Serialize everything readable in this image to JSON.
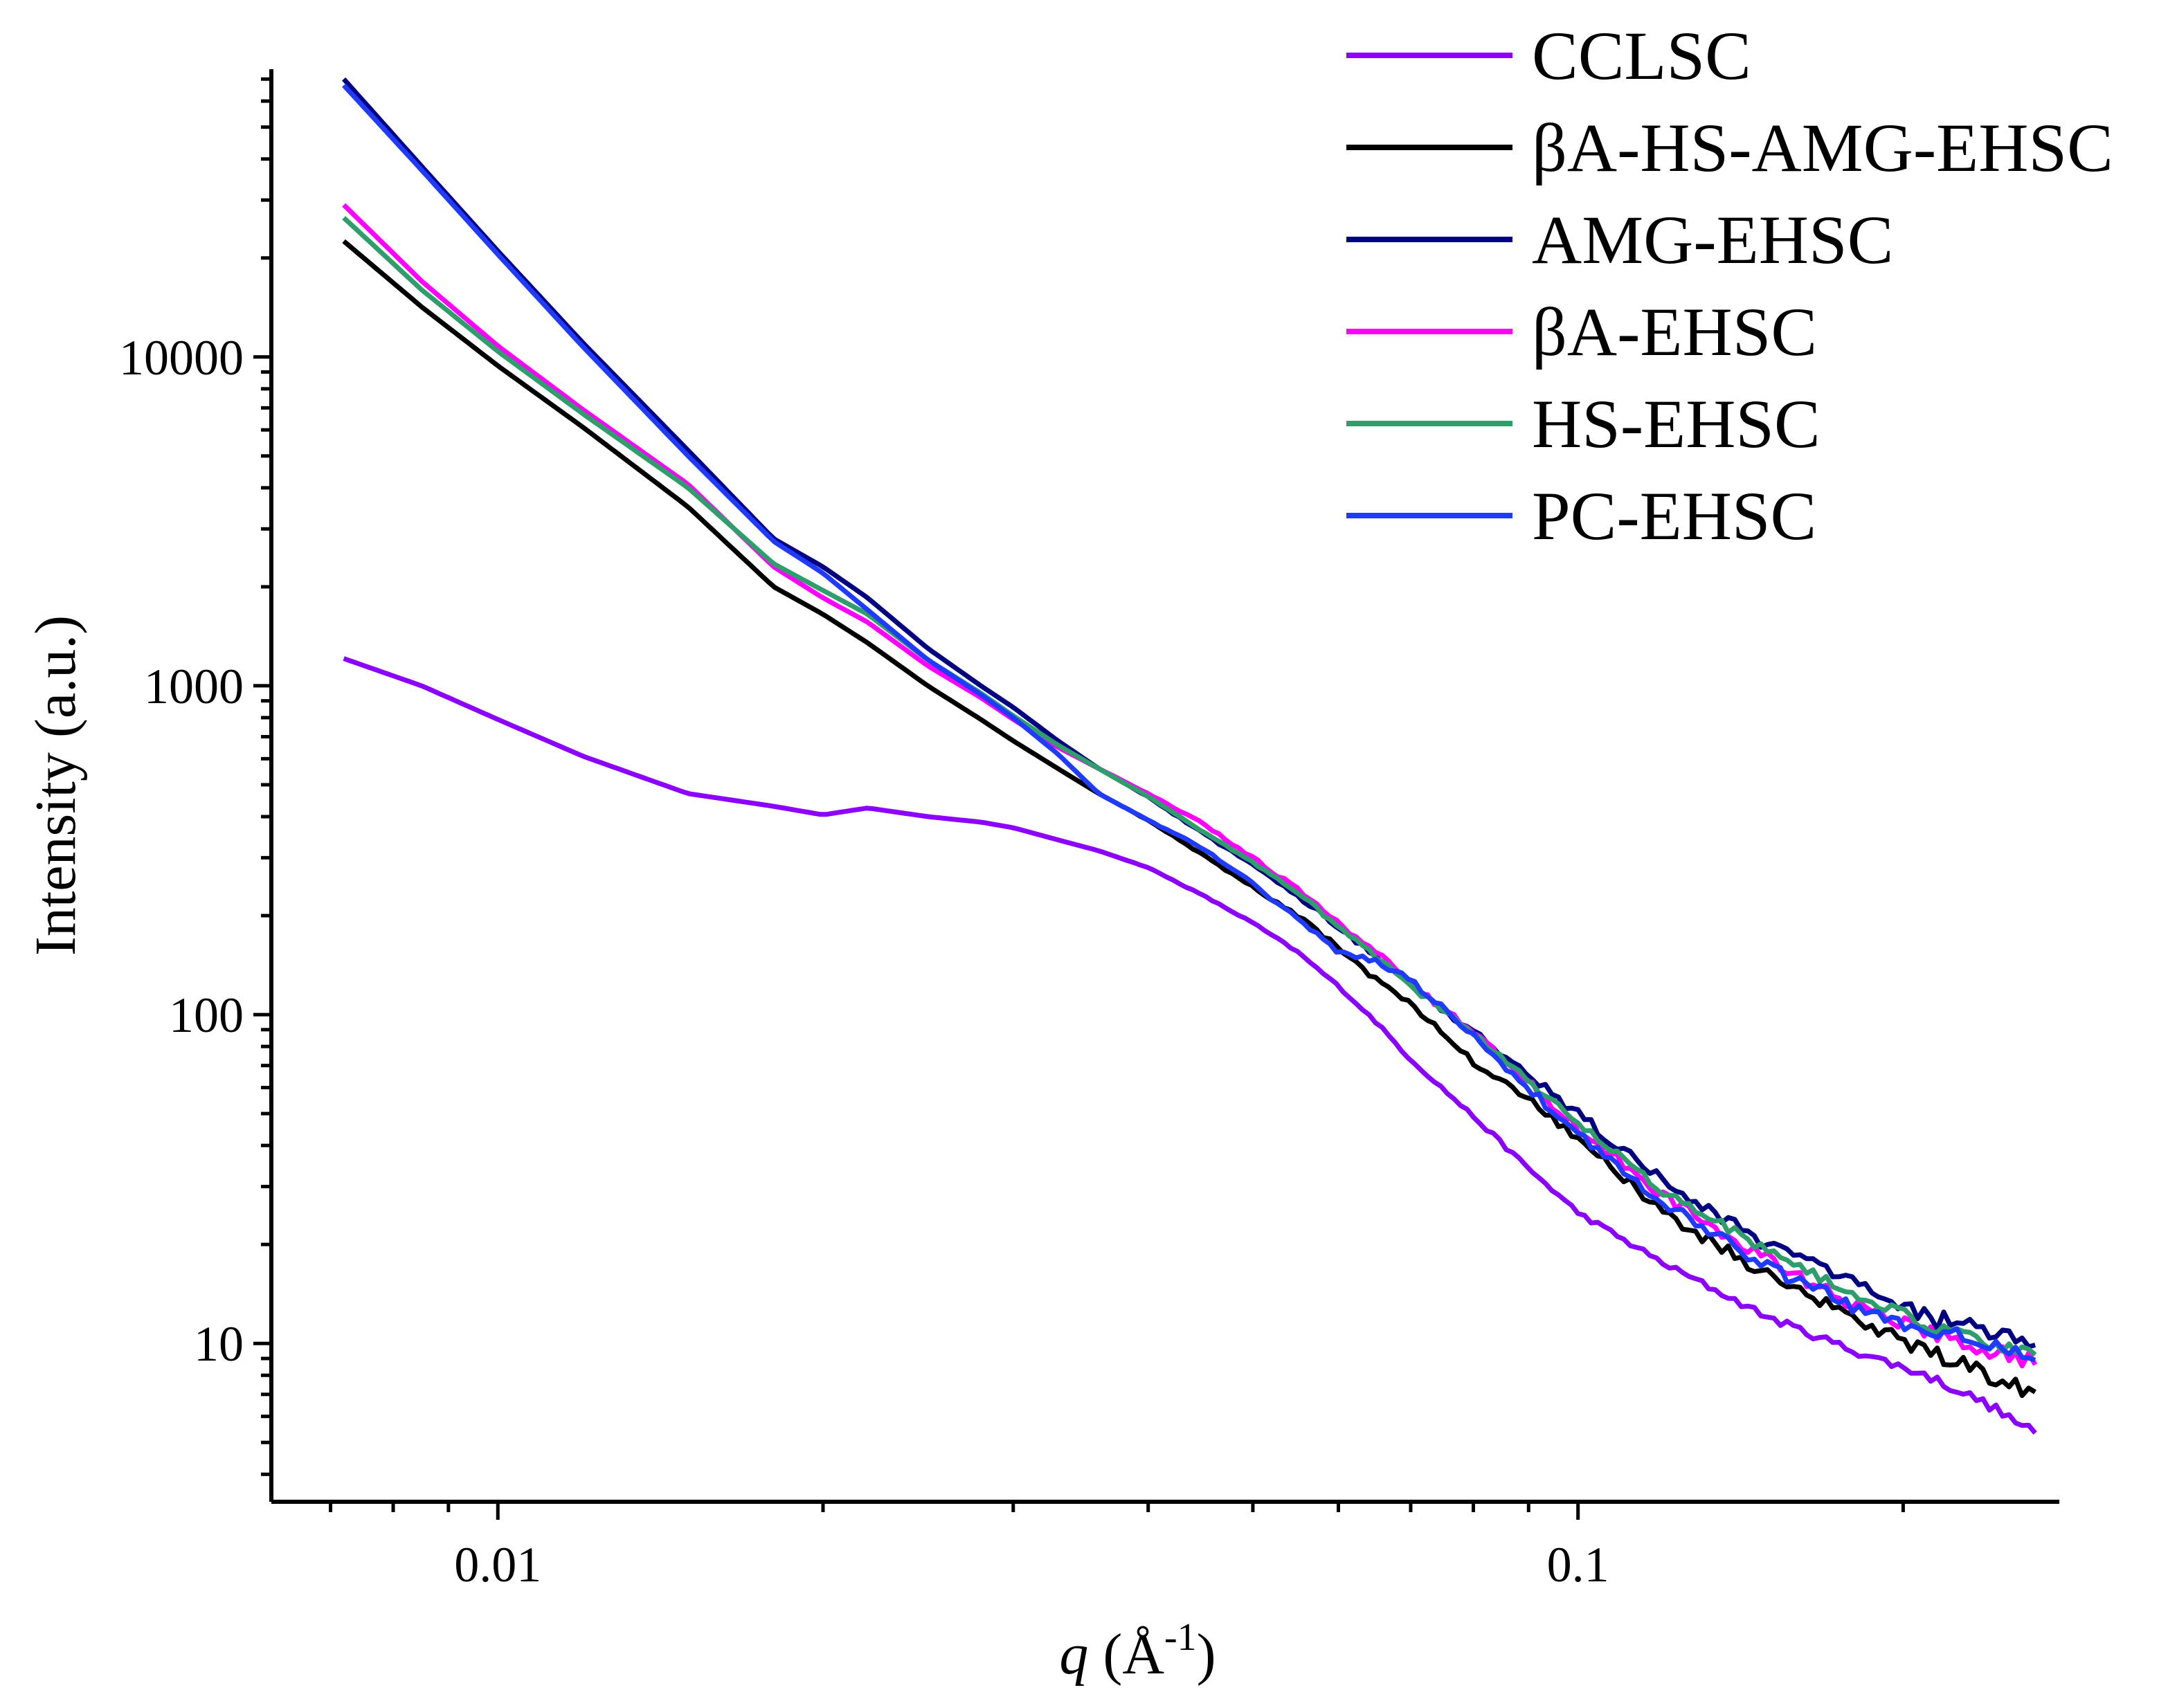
{
  "chart_data": {
    "type": "line",
    "title": "",
    "xlabel": "q (Å-1)",
    "xlabel_parts": {
      "var": "q",
      "open": " (Å",
      "sup": "-1",
      "close": ")"
    },
    "ylabel": "Intensity (a.u.)",
    "xscale": "log",
    "yscale": "log",
    "xlim": [
      0.00617,
      0.279
    ],
    "ylim": [
      3.3,
      75000
    ],
    "x_ticks": [
      {
        "value": 0.01,
        "label": "0.01"
      },
      {
        "value": 0.1,
        "label": "0.1"
      }
    ],
    "y_ticks": [
      {
        "value": 10,
        "label": "10"
      },
      {
        "value": 100,
        "label": "100"
      },
      {
        "value": 1000,
        "label": "1000"
      },
      {
        "value": 10000,
        "label": "10000"
      }
    ],
    "grid": false,
    "legend_position": "top-right",
    "series": [
      {
        "name": "CCLSC",
        "color": "#8B00FF",
        "noise": 0.02,
        "x": [
          0.0072,
          0.0085,
          0.01,
          0.012,
          0.015,
          0.018,
          0.02,
          0.022,
          0.025,
          0.028,
          0.03,
          0.033,
          0.036,
          0.04,
          0.045,
          0.05,
          0.055,
          0.06,
          0.065,
          0.07,
          0.08,
          0.09,
          0.1,
          0.12,
          0.15,
          0.18,
          0.21,
          0.24,
          0.265
        ],
        "y": [
          1210,
          1000,
          790,
          610,
          470,
          430,
          405,
          425,
          400,
          385,
          370,
          340,
          315,
          280,
          230,
          190,
          155,
          122,
          95,
          73,
          49,
          34,
          25,
          17.5,
          12,
          9.5,
          8,
          6.5,
          5.3
        ]
      },
      {
        "name": "βA-HS-AMG-EHSC",
        "color": "#000000",
        "noise": 0.035,
        "x": [
          0.0072,
          0.0085,
          0.01,
          0.012,
          0.015,
          0.018,
          0.02,
          0.022,
          0.025,
          0.028,
          0.03,
          0.033,
          0.036,
          0.04,
          0.045,
          0.05,
          0.055,
          0.06,
          0.065,
          0.07,
          0.08,
          0.09,
          0.1,
          0.12,
          0.15,
          0.18,
          0.21,
          0.24,
          0.265
        ],
        "y": [
          22500,
          14200,
          9400,
          6100,
          3500,
          2000,
          1650,
          1350,
          1000,
          790,
          680,
          560,
          470,
          390,
          305,
          245,
          200,
          160,
          128,
          108,
          72,
          55,
          42,
          25,
          16,
          12,
          9.5,
          8,
          7.1
        ]
      },
      {
        "name": "AMG-EHSC",
        "color": "#000080",
        "noise": 0.04,
        "x": [
          0.0072,
          0.0085,
          0.01,
          0.012,
          0.015,
          0.018,
          0.02,
          0.022,
          0.025,
          0.028,
          0.03,
          0.033,
          0.036,
          0.04,
          0.045,
          0.05,
          0.055,
          0.06,
          0.065,
          0.07,
          0.08,
          0.09,
          0.1,
          0.12,
          0.15,
          0.18,
          0.21,
          0.24,
          0.265
        ],
        "y": [
          70000,
          38000,
          21000,
          11000,
          5200,
          2800,
          2300,
          1850,
          1300,
          1000,
          860,
          680,
          560,
          460,
          355,
          285,
          230,
          185,
          150,
          125,
          88,
          65,
          50,
          31,
          20,
          15,
          12,
          11,
          10
        ]
      },
      {
        "name": "βA-EHSC",
        "color": "#FF00FF",
        "noise": 0.035,
        "x": [
          0.0072,
          0.0085,
          0.01,
          0.012,
          0.015,
          0.018,
          0.02,
          0.022,
          0.025,
          0.028,
          0.03,
          0.033,
          0.036,
          0.04,
          0.045,
          0.05,
          0.055,
          0.06,
          0.065,
          0.07,
          0.08,
          0.09,
          0.1,
          0.12,
          0.15,
          0.18,
          0.21,
          0.24,
          0.265
        ],
        "y": [
          29000,
          17000,
          10800,
          6900,
          4100,
          2300,
          1850,
          1560,
          1150,
          920,
          790,
          650,
          560,
          470,
          380,
          300,
          240,
          190,
          155,
          125,
          88,
          62,
          45,
          28,
          18,
          13,
          11,
          9.5,
          8.8
        ]
      },
      {
        "name": "HS-EHSC",
        "color": "#2E9E6A",
        "noise": 0.03,
        "x": [
          0.0072,
          0.0085,
          0.01,
          0.012,
          0.015,
          0.018,
          0.02,
          0.022,
          0.025,
          0.028,
          0.03,
          0.033,
          0.036,
          0.04,
          0.045,
          0.05,
          0.055,
          0.06,
          0.065,
          0.07,
          0.08,
          0.09,
          0.1,
          0.12,
          0.15,
          0.18,
          0.21,
          0.24,
          0.265
        ],
        "y": [
          26500,
          16000,
          10400,
          6700,
          4000,
          2350,
          1950,
          1650,
          1200,
          950,
          810,
          660,
          560,
          460,
          360,
          290,
          235,
          185,
          150,
          122,
          88,
          63,
          47,
          29,
          19,
          14,
          11.5,
          10,
          9.5
        ]
      },
      {
        "name": "PC-EHSC",
        "color": "#1F3BFF",
        "noise": 0.035,
        "x": [
          0.0072,
          0.0085,
          0.01,
          0.012,
          0.015,
          0.018,
          0.02,
          0.022,
          0.025,
          0.028,
          0.03,
          0.033,
          0.036,
          0.04,
          0.045,
          0.05,
          0.055,
          0.06,
          0.065,
          0.07,
          0.08,
          0.09,
          0.1,
          0.12,
          0.15,
          0.18,
          0.21,
          0.24,
          0.265
        ],
        "y": [
          67000,
          37000,
          20500,
          10700,
          5000,
          2750,
          2200,
          1700,
          1200,
          940,
          800,
          620,
          470,
          390,
          320,
          250,
          195,
          155,
          145,
          128,
          86,
          60,
          43,
          27,
          17,
          13,
          11,
          10,
          9.3
        ]
      }
    ]
  }
}
